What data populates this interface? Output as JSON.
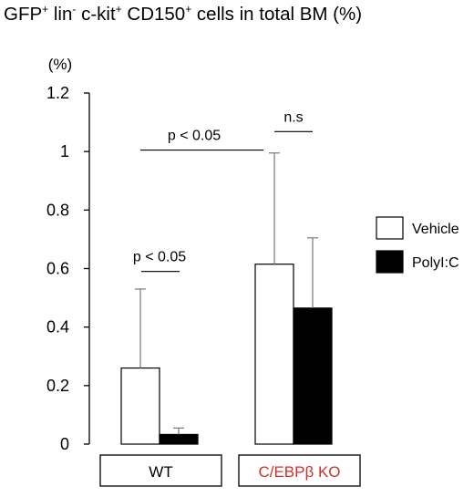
{
  "title": {
    "parts": [
      {
        "text": "GFP",
        "sup": false
      },
      {
        "text": "+",
        "sup": true
      },
      {
        "text": " lin",
        "sup": false
      },
      {
        "text": "-",
        "sup": true
      },
      {
        "text": " c-kit",
        "sup": false
      },
      {
        "text": "+",
        "sup": true
      },
      {
        "text": " CD150",
        "sup": false
      },
      {
        "text": "+",
        "sup": true
      },
      {
        "text": " cells in total BM (%)",
        "sup": false
      }
    ]
  },
  "chart_data": {
    "type": "bar",
    "ylabel": "(%)",
    "ylim": [
      0,
      1.2
    ],
    "yticks": [
      "0",
      "0.2",
      "0.4",
      "0.6",
      "0.8",
      "1",
      "1.2"
    ],
    "categories": [
      "WT",
      "C/EBPβ KO"
    ],
    "category_colors": [
      "#000000",
      "#d0302a"
    ],
    "series": [
      {
        "name": "Vehicle",
        "fill": "#ffffff",
        "values": [
          0.26,
          0.615
        ],
        "error": [
          0.27,
          0.38
        ]
      },
      {
        "name": "PolyI:C",
        "fill": "#000000",
        "values": [
          0.033,
          0.465
        ],
        "error": [
          0.022,
          0.24
        ]
      }
    ],
    "legend_position": "right",
    "annotations": [
      {
        "text": "p < 0.05",
        "kind": "within-WT"
      },
      {
        "text": "p < 0.05",
        "kind": "vehicle-between-groups"
      },
      {
        "text": "n.s",
        "kind": "within-KO"
      }
    ],
    "grid": false
  }
}
